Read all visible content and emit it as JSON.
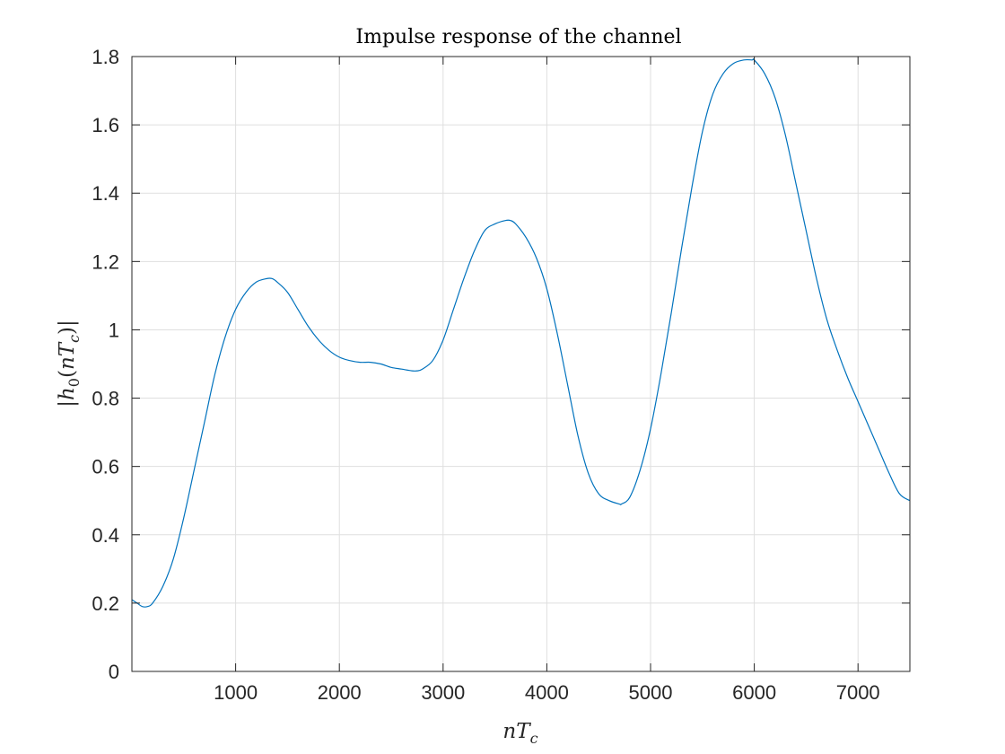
{
  "chart_data": {
    "type": "line",
    "title": "Impulse response of the channel",
    "xlabel": "nT_c",
    "ylabel": "|h_0(nT_c)|",
    "xlim": [
      0,
      7500
    ],
    "ylim": [
      0,
      1.8
    ],
    "xticks": [
      1000,
      2000,
      3000,
      4000,
      5000,
      6000,
      7000
    ],
    "yticks": [
      0,
      0.2,
      0.4,
      0.6,
      0.8,
      1,
      1.2,
      1.4,
      1.6,
      1.8
    ],
    "xtick_labels": [
      "1000",
      "2000",
      "3000",
      "4000",
      "5000",
      "6000",
      "7000"
    ],
    "ytick_labels": [
      "0",
      "0.2",
      "0.4",
      "0.6",
      "0.8",
      "1",
      "1.2",
      "1.4",
      "1.6",
      "1.8"
    ],
    "grid": true,
    "color": "#0072BD",
    "series": [
      {
        "x": [
          0,
          50,
          100,
          150,
          200,
          300,
          400,
          500,
          600,
          700,
          800,
          900,
          1000,
          1100,
          1200,
          1300,
          1350,
          1400,
          1500,
          1600,
          1700,
          1800,
          1900,
          2000,
          2100,
          2200,
          2300,
          2400,
          2500,
          2600,
          2700,
          2750,
          2800,
          2900,
          3000,
          3100,
          3200,
          3300,
          3400,
          3500,
          3600,
          3650,
          3700,
          3800,
          3900,
          4000,
          4100,
          4200,
          4300,
          4400,
          4500,
          4600,
          4700,
          4720,
          4800,
          4900,
          5000,
          5100,
          5200,
          5300,
          5400,
          5500,
          5600,
          5700,
          5800,
          5900,
          5980,
          6000,
          6100,
          6200,
          6300,
          6400,
          6500,
          6600,
          6700,
          6800,
          6900,
          7000,
          7100,
          7200,
          7300,
          7400,
          7500
        ],
        "y": [
          0.21,
          0.2,
          0.19,
          0.19,
          0.2,
          0.25,
          0.33,
          0.45,
          0.59,
          0.73,
          0.87,
          0.98,
          1.06,
          1.11,
          1.14,
          1.15,
          1.15,
          1.14,
          1.11,
          1.06,
          1.01,
          0.97,
          0.94,
          0.92,
          0.91,
          0.905,
          0.905,
          0.9,
          0.89,
          0.885,
          0.88,
          0.88,
          0.885,
          0.91,
          0.97,
          1.06,
          1.15,
          1.23,
          1.29,
          1.31,
          1.32,
          1.32,
          1.31,
          1.27,
          1.21,
          1.12,
          0.99,
          0.84,
          0.69,
          0.58,
          0.52,
          0.5,
          0.49,
          0.49,
          0.51,
          0.59,
          0.71,
          0.87,
          1.05,
          1.24,
          1.42,
          1.58,
          1.69,
          1.75,
          1.78,
          1.79,
          1.79,
          1.79,
          1.75,
          1.68,
          1.57,
          1.43,
          1.29,
          1.15,
          1.03,
          0.94,
          0.86,
          0.79,
          0.72,
          0.65,
          0.58,
          0.52,
          0.5
        ]
      }
    ]
  }
}
